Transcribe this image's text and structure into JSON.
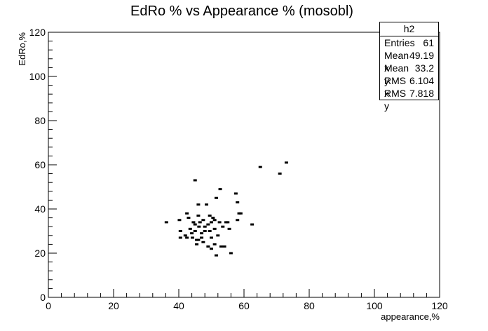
{
  "chart_data": {
    "type": "scatter",
    "title": "EdRo % vs Appearance % (mosobl)",
    "xlabel": "appearance,%",
    "ylabel": "EdRo,%",
    "xlim": [
      0,
      120
    ],
    "ylim": [
      0,
      120
    ],
    "xticks": [
      "0",
      "20",
      "40",
      "60",
      "80",
      "100",
      "120"
    ],
    "yticks": [
      "0",
      "20",
      "40",
      "60",
      "80",
      "100",
      "120"
    ],
    "grid": false,
    "stats_box": {
      "name": "h2",
      "rows": [
        {
          "label": "Entries",
          "value": "61"
        },
        {
          "label": "Mean x",
          "value": "49.19"
        },
        {
          "label": "Mean y",
          "value": "33.2"
        },
        {
          "label": "RMS x",
          "value": "6.104"
        },
        {
          "label": "RMS y",
          "value": "7.818"
        }
      ]
    },
    "points": [
      [
        36.2,
        34
      ],
      [
        40.2,
        35
      ],
      [
        40.5,
        30
      ],
      [
        40.5,
        27
      ],
      [
        42,
        28
      ],
      [
        42.5,
        27
      ],
      [
        42.5,
        38
      ],
      [
        43,
        36
      ],
      [
        43.5,
        31
      ],
      [
        44,
        29
      ],
      [
        44.2,
        27
      ],
      [
        44.5,
        34
      ],
      [
        45,
        53
      ],
      [
        45,
        33
      ],
      [
        45,
        30
      ],
      [
        45.5,
        26
      ],
      [
        45.5,
        24
      ],
      [
        46,
        42
      ],
      [
        46,
        37
      ],
      [
        46.2,
        32
      ],
      [
        46.5,
        34
      ],
      [
        47,
        29
      ],
      [
        47,
        27
      ],
      [
        47.5,
        35
      ],
      [
        47.5,
        25
      ],
      [
        48,
        32
      ],
      [
        48,
        30
      ],
      [
        48.5,
        42
      ],
      [
        49,
        23
      ],
      [
        49,
        33
      ],
      [
        49.5,
        37
      ],
      [
        49.5,
        30
      ],
      [
        50,
        34
      ],
      [
        50,
        27
      ],
      [
        50,
        22
      ],
      [
        50.5,
        36
      ],
      [
        51,
        35
      ],
      [
        51,
        31
      ],
      [
        51,
        24
      ],
      [
        51.5,
        45
      ],
      [
        51.5,
        19
      ],
      [
        52,
        28
      ],
      [
        52.5,
        34
      ],
      [
        52.7,
        49
      ],
      [
        53,
        23
      ],
      [
        53.5,
        32
      ],
      [
        54,
        23
      ],
      [
        54.5,
        34
      ],
      [
        55,
        34
      ],
      [
        55.5,
        31
      ],
      [
        56,
        20
      ],
      [
        57.5,
        47
      ],
      [
        58,
        43
      ],
      [
        58,
        35
      ],
      [
        58.5,
        38
      ],
      [
        59,
        38
      ],
      [
        62.5,
        33
      ],
      [
        65,
        59
      ],
      [
        71,
        56
      ],
      [
        73,
        61
      ],
      [
        46,
        26
      ]
    ]
  }
}
